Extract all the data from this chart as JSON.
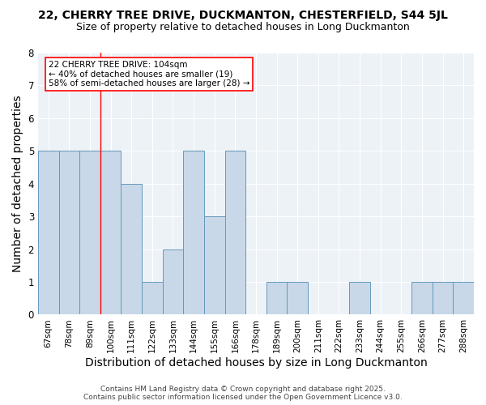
{
  "title": "22, CHERRY TREE DRIVE, DUCKMANTON, CHESTERFIELD, S44 5JL",
  "subtitle": "Size of property relative to detached houses in Long Duckmanton",
  "xlabel": "Distribution of detached houses by size in Long Duckmanton",
  "ylabel": "Number of detached properties",
  "categories": [
    "67sqm",
    "78sqm",
    "89sqm",
    "100sqm",
    "111sqm",
    "122sqm",
    "133sqm",
    "144sqm",
    "155sqm",
    "166sqm",
    "178sqm",
    "189sqm",
    "200sqm",
    "211sqm",
    "222sqm",
    "233sqm",
    "244sqm",
    "255sqm",
    "266sqm",
    "277sqm",
    "288sqm"
  ],
  "values": [
    5,
    5,
    5,
    5,
    4,
    1,
    2,
    5,
    3,
    5,
    0,
    1,
    1,
    0,
    0,
    1,
    0,
    0,
    1,
    1,
    1
  ],
  "bar_color": "#c8d8e8",
  "bar_edge_color": "#6699bb",
  "red_line_x": 2.5,
  "ylim": [
    0,
    8
  ],
  "yticks": [
    0,
    1,
    2,
    3,
    4,
    5,
    6,
    7,
    8
  ],
  "annotation_text": "22 CHERRY TREE DRIVE: 104sqm\n← 40% of detached houses are smaller (19)\n58% of semi-detached houses are larger (28) →",
  "footer_text": "Contains HM Land Registry data © Crown copyright and database right 2025.\nContains public sector information licensed under the Open Government Licence v3.0.",
  "background_color": "#edf2f7",
  "title_fontsize": 10,
  "subtitle_fontsize": 9,
  "axis_label_fontsize": 9,
  "tick_fontsize": 7.5,
  "annotation_fontsize": 7.5,
  "footer_fontsize": 6.5
}
